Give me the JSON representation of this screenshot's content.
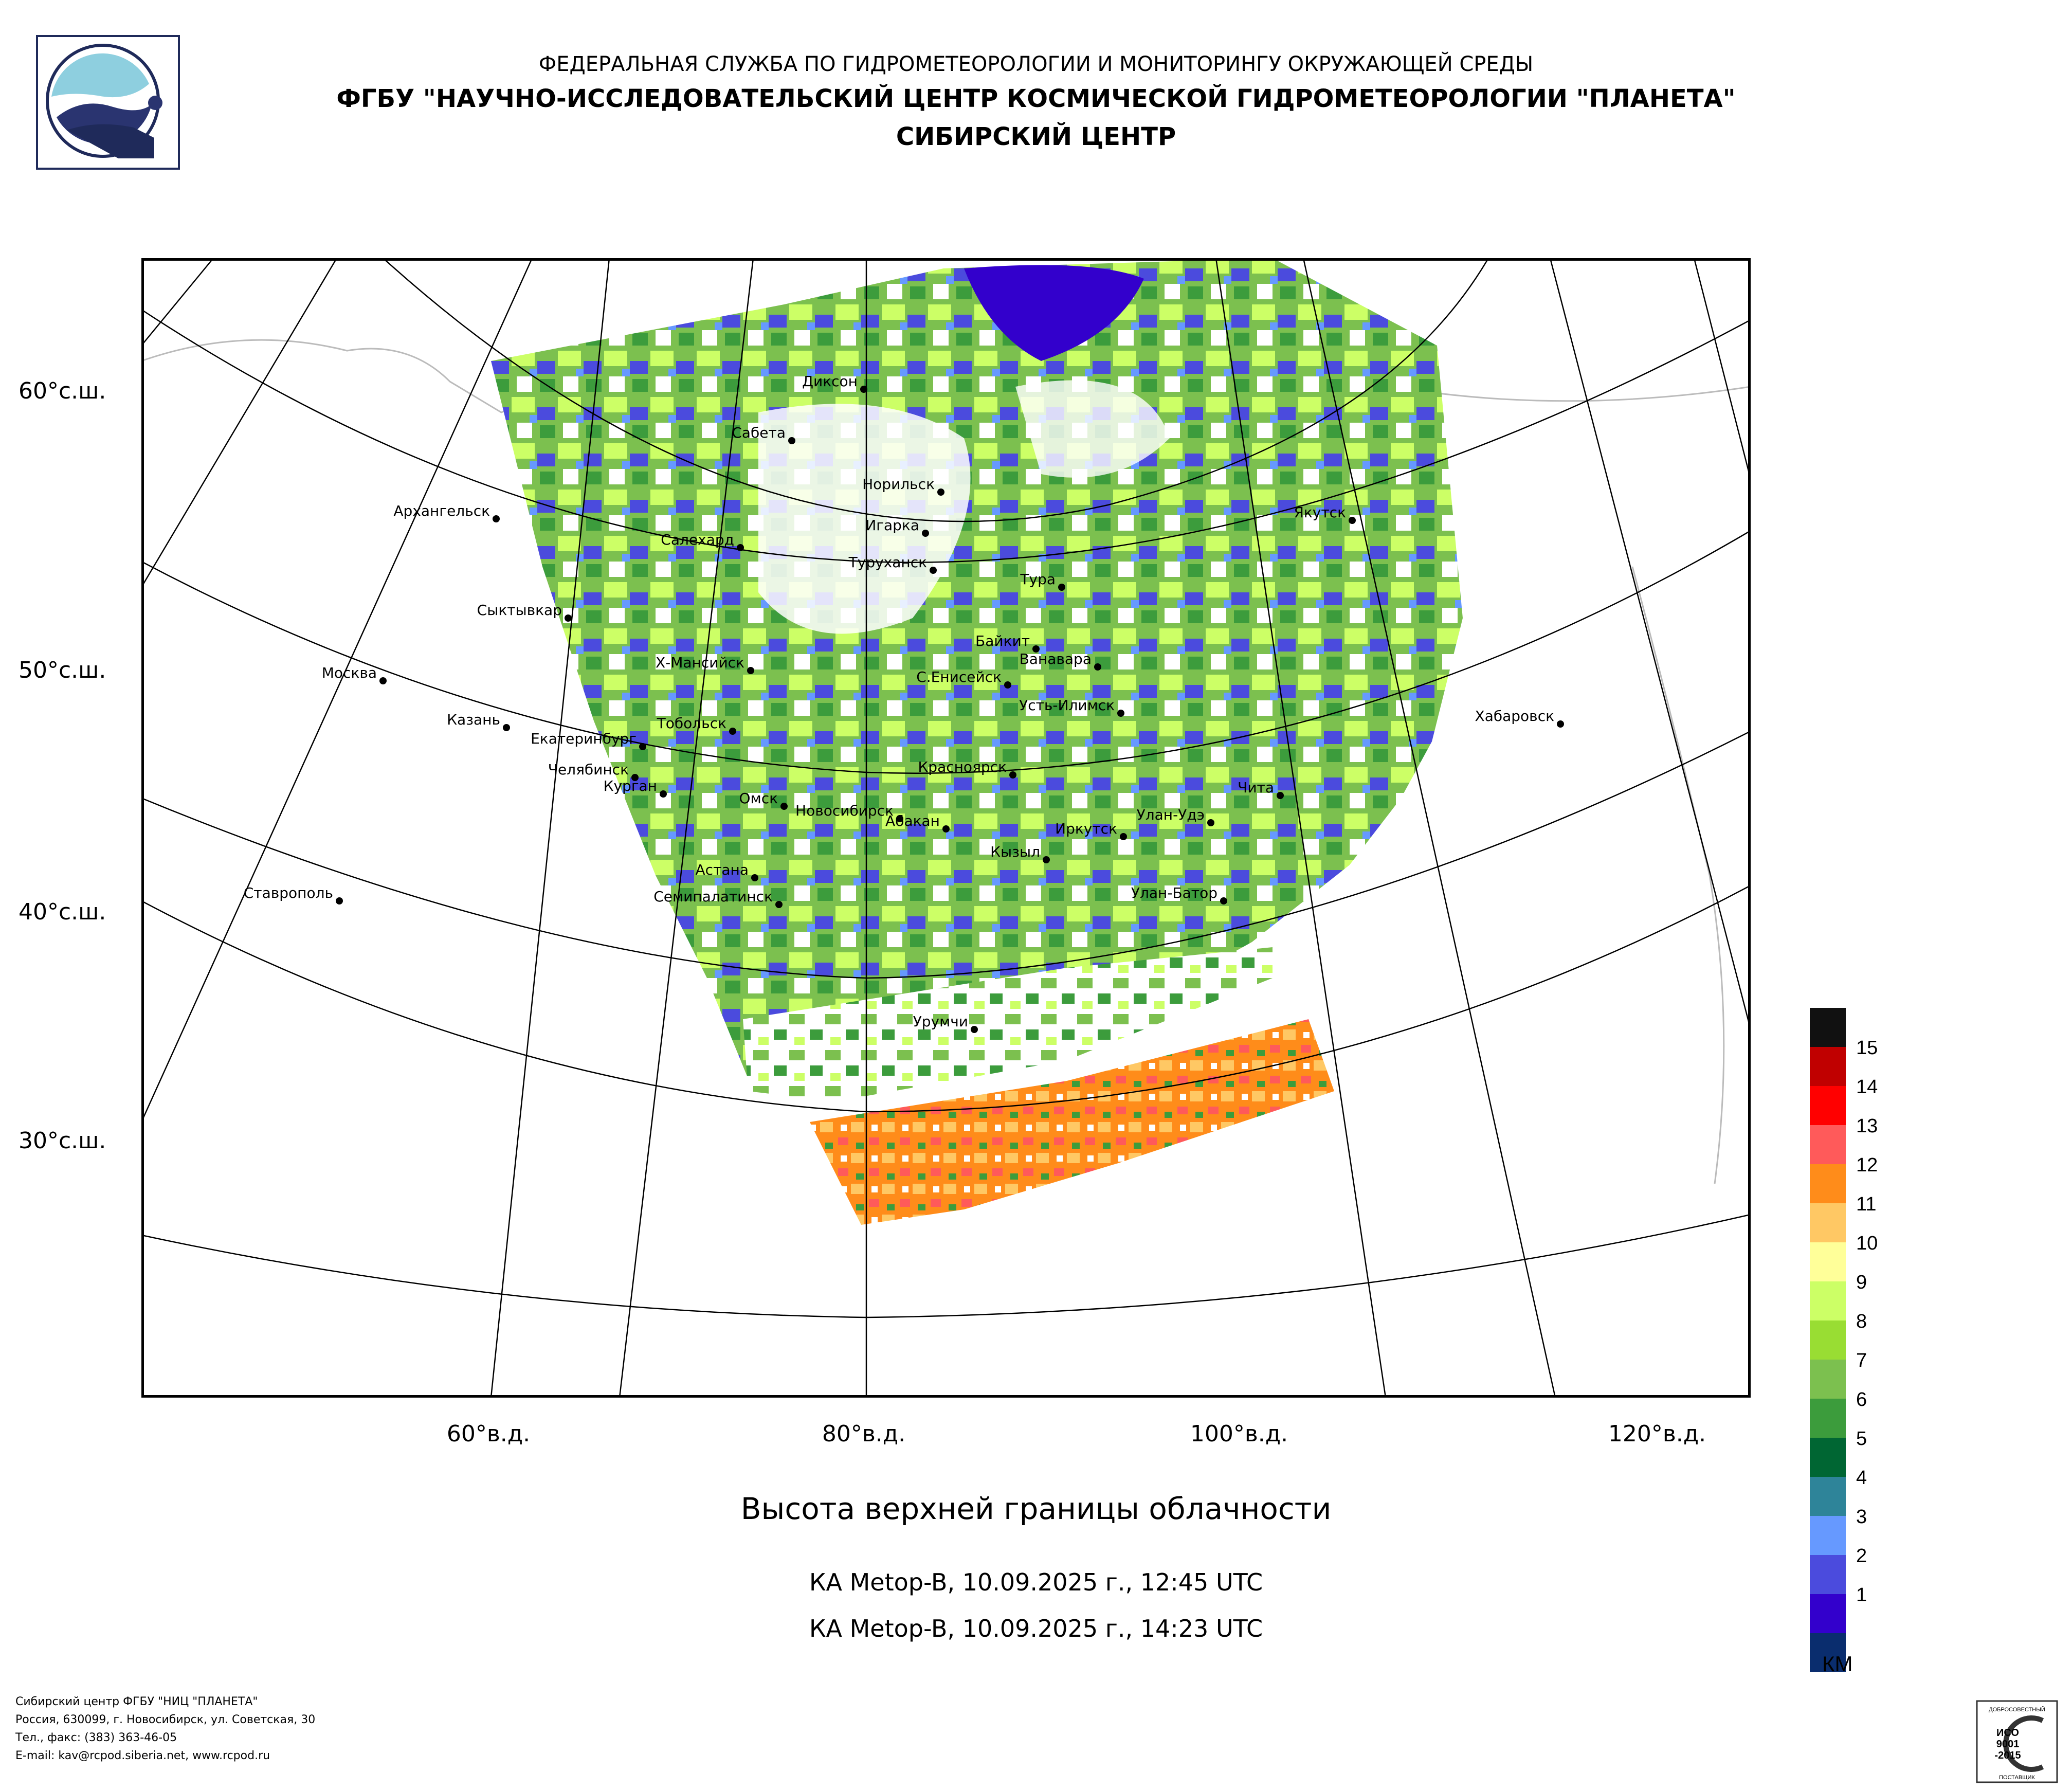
{
  "header": {
    "line1": "ФЕДЕРАЛЬНАЯ СЛУЖБА ПО ГИДРОМЕТЕОРОЛОГИИ И МОНИТОРИНГУ ОКРУЖАЮЩЕЙ СРЕДЫ",
    "line2": "ФГБУ \"НАУЧНО-ИССЛЕДОВАТЕЛЬСКИЙ ЦЕНТР КОСМИЧЕСКОЙ ГИДРОМЕТЕОРОЛОГИИ \"ПЛАНЕТА\"",
    "line3": "СИБИРСКИЙ ЦЕНТР"
  },
  "lat_labels": [
    "60°с.ш.",
    "50°с.ш.",
    "40°с.ш.",
    "30°с.ш."
  ],
  "lon_labels": [
    "60°в.д.",
    "80°в.д.",
    "100°в.д.",
    "120°в.д."
  ],
  "cities": [
    {
      "name": "Диксон"
    },
    {
      "name": "Сабета"
    },
    {
      "name": "Норильск"
    },
    {
      "name": "Архангельск"
    },
    {
      "name": "Игарка"
    },
    {
      "name": "Салехард"
    },
    {
      "name": "Якутск"
    },
    {
      "name": "Туруханск"
    },
    {
      "name": "Тура"
    },
    {
      "name": "Сыктывкар"
    },
    {
      "name": "Байкит"
    },
    {
      "name": "Ванавара"
    },
    {
      "name": "Москва"
    },
    {
      "name": "Х-Мансийск"
    },
    {
      "name": "С.Енисейск"
    },
    {
      "name": "Усть-Илимск"
    },
    {
      "name": "Казань"
    },
    {
      "name": "Тобольск"
    },
    {
      "name": "Екатеринбург"
    },
    {
      "name": "Хабаровск"
    },
    {
      "name": "Челябинск"
    },
    {
      "name": "Красноярск"
    },
    {
      "name": "Чита"
    },
    {
      "name": "Курган"
    },
    {
      "name": "Омск"
    },
    {
      "name": "Новосибирск"
    },
    {
      "name": "Улан-Удэ"
    },
    {
      "name": "Абакан"
    },
    {
      "name": "Иркутск"
    },
    {
      "name": "Кызыл"
    },
    {
      "name": "Астана"
    },
    {
      "name": "Ставрополь"
    },
    {
      "name": "Улан-Батор"
    },
    {
      "name": "Семипалатинск"
    },
    {
      "name": "Урумчи"
    }
  ],
  "legend": {
    "unit": "КМ",
    "levels": [
      {
        "value": "15",
        "color": "#111111"
      },
      {
        "value": "14",
        "color": "#c00000"
      },
      {
        "value": "13",
        "color": "#ff0000"
      },
      {
        "value": "12",
        "color": "#ff5a5a"
      },
      {
        "value": "11",
        "color": "#ff8c1a"
      },
      {
        "value": "10",
        "color": "#ffc864"
      },
      {
        "value": "9",
        "color": "#ffff99"
      },
      {
        "value": "8",
        "color": "#ccff66"
      },
      {
        "value": "7",
        "color": "#99dd33"
      },
      {
        "value": "6",
        "color": "#7cc04f"
      },
      {
        "value": "5",
        "color": "#3c9c3c"
      },
      {
        "value": "4",
        "color": "#006633"
      },
      {
        "value": "3",
        "color": "#2e8499"
      },
      {
        "value": "2",
        "color": "#6699ff"
      },
      {
        "value": "1",
        "color": "#4b4bdd"
      },
      {
        "value": "",
        "color": "#3300cc"
      },
      {
        "value": "",
        "color": "#0a2d6e"
      }
    ]
  },
  "title": "Высота верхней границы облачности",
  "pass1": "КА Metop-B, 10.09.2025 г., 12:45 UTC",
  "pass2": "КА Metop-B, 10.09.2025 г., 14:23 UTC",
  "footer": {
    "line1": "Сибирский центр ФГБУ \"НИЦ \"ПЛАНЕТА\"",
    "line2": "Россия, 630099, г. Новосибирск, ул. Советская, 30",
    "line3": "Тел., факс: (383) 363-46-05",
    "line4": "E-mail: kav@rcpod.siberia.net, www.rcpod.ru"
  },
  "iso_mark": {
    "top": "ДОБРОСОВЕСТНЫЙ",
    "l1": "ИСО",
    "l2": "9001",
    "l3": "-2015",
    "bottom": "ПОСТАВЩИК"
  }
}
